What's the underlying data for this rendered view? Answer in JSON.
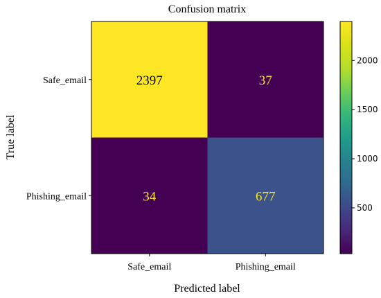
{
  "chart_data": {
    "type": "heatmap",
    "title": "Confusion matrix",
    "xlabel": "Predicted label",
    "ylabel": "True label",
    "x_categories": [
      "Safe_email",
      "Phishing_email"
    ],
    "y_categories": [
      "Safe_email",
      "Phishing_email"
    ],
    "values": [
      [
        2397,
        37
      ],
      [
        34,
        677
      ]
    ],
    "cell_labels": [
      [
        "2397",
        "37"
      ],
      [
        "34",
        "677"
      ]
    ],
    "colormap": "viridis",
    "cell_colors": [
      [
        "#fde725",
        "#440154"
      ],
      [
        "#440154",
        "#3b528b"
      ]
    ],
    "cell_text_colors": [
      [
        "#000000",
        "#fde725"
      ],
      [
        "#fde725",
        "#fde725"
      ]
    ],
    "colorbar": {
      "range": [
        34,
        2397
      ],
      "ticks": [
        500,
        1000,
        1500,
        2000
      ],
      "tick_labels": [
        "500",
        "1000",
        "1500",
        "2000"
      ]
    }
  }
}
